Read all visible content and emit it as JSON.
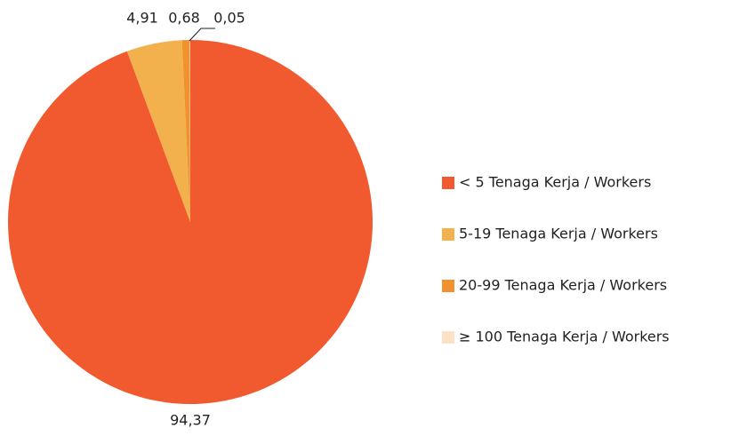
{
  "chart_data": {
    "type": "pie",
    "categories": [
      "< 5 Tenaga Kerja / Workers",
      "5-19 Tenaga Kerja / Workers",
      "20-99 Tenaga Kerja / Workers",
      "≥ 100 Tenaga Kerja / Workers"
    ],
    "values": [
      94.37,
      4.91,
      0.68,
      0.05
    ],
    "value_labels": [
      "94,37",
      "4,91",
      "0,68",
      "0,05"
    ],
    "colors": [
      "#f15a2e",
      "#f2b14c",
      "#f1922f",
      "#fde2c6"
    ],
    "legend": "right"
  }
}
